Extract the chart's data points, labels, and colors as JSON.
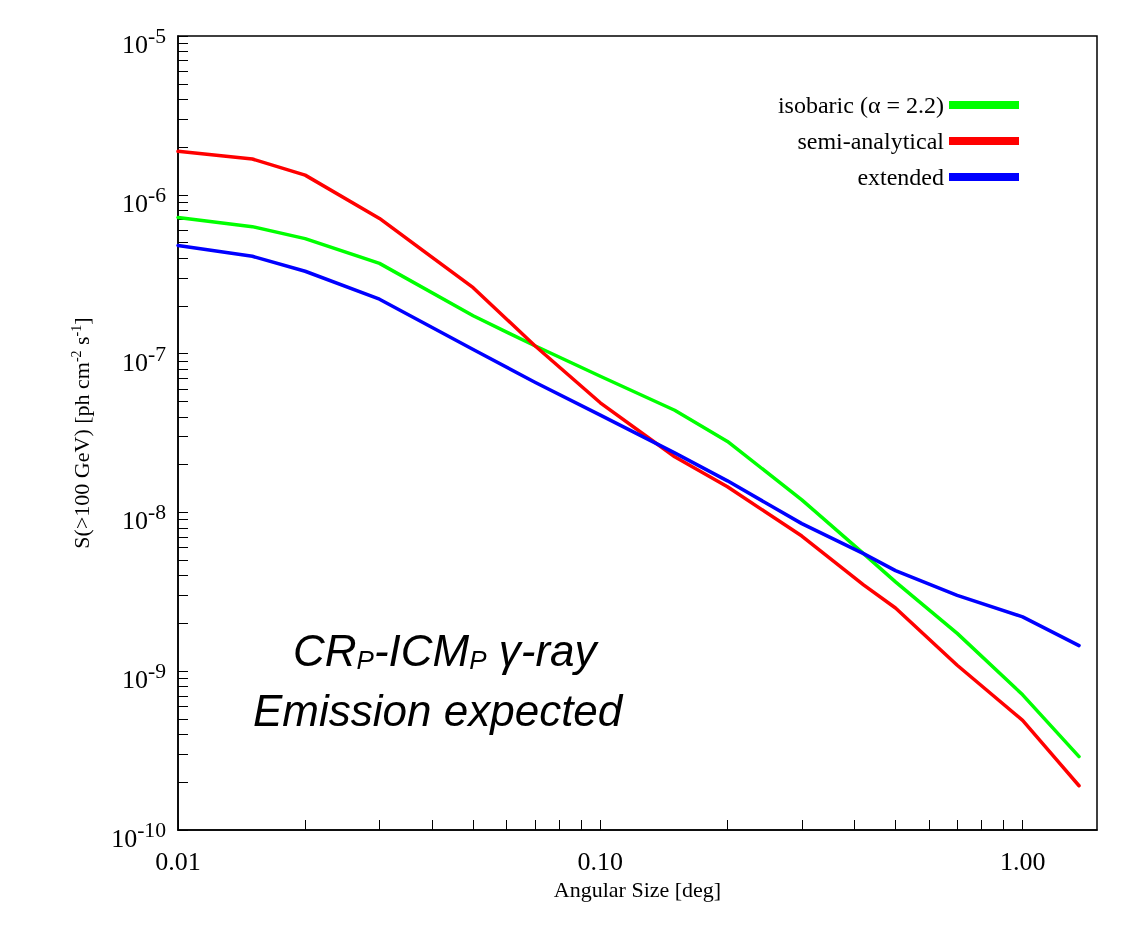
{
  "chart_data": {
    "type": "line",
    "xlabel": "Angular Size [deg]",
    "ylabel": "S(>100 GeV) [ph cm$^{-2}$ s$^{-1}$]",
    "x": [
      0.01,
      0.015,
      0.02,
      0.03,
      0.05,
      0.07,
      0.1,
      0.15,
      0.2,
      0.3,
      0.42,
      0.5,
      0.7,
      1.0,
      1.36
    ],
    "series": [
      {
        "name": "isobaric (α = 2.2)",
        "color": "#00ff00",
        "values": [
          7.2e-07,
          6.3e-07,
          5.3e-07,
          3.7e-07,
          1.73e-07,
          1.12e-07,
          7.2e-08,
          4.4e-08,
          2.8e-08,
          1.2e-08,
          5.5e-09,
          3.65e-09,
          1.73e-09,
          7.1e-10,
          2.9e-10
        ]
      },
      {
        "name": "semi-analytical",
        "color": "#ff0000",
        "values": [
          1.88e-06,
          1.68e-06,
          1.33e-06,
          7.1e-07,
          2.6e-07,
          1.12e-07,
          4.9e-08,
          2.24e-08,
          1.45e-08,
          7.1e-09,
          3.5e-09,
          2.5e-09,
          1.09e-09,
          4.9e-10,
          1.9e-10
        ]
      },
      {
        "name": "extended",
        "color": "#0000ff",
        "values": [
          4.8e-07,
          4.1e-07,
          3.3e-07,
          2.2e-07,
          1.06e-07,
          6.6e-08,
          4.1e-08,
          2.37e-08,
          1.58e-08,
          8.5e-09,
          5.5e-09,
          4.3e-09,
          3e-09,
          2.2e-09,
          1.45e-09
        ]
      }
    ],
    "log": "xy",
    "xlim": [
      0.01,
      1.5
    ],
    "xticks": [
      0.01,
      {
        "value": 0.1,
        "label": "0.10"
      },
      {
        "value": 1,
        "label": "1.00"
      }
    ],
    "ylim": [
      1e-10,
      1e-05
    ],
    "yticks": [
      {
        "value": 1e-10,
        "label": "10$^{-10}$"
      },
      {
        "value": 1e-09,
        "label": "10$^{-9}$"
      },
      {
        "value": 1e-08,
        "label": "10$^{-8}$"
      },
      {
        "value": 1e-07,
        "label": "10$^{-7}$"
      },
      {
        "value": 1e-06,
        "label": "10$^{-6}$"
      },
      {
        "value": 1e-05,
        "label": "10$^{-5}$"
      }
    ],
    "grid": false,
    "legend": "top right",
    "marker": "none",
    "line_style": "solid",
    "annotations": [
      "CR$_{P}$-ICM$_{P}$ γ-ray",
      "Emission expected"
    ]
  }
}
